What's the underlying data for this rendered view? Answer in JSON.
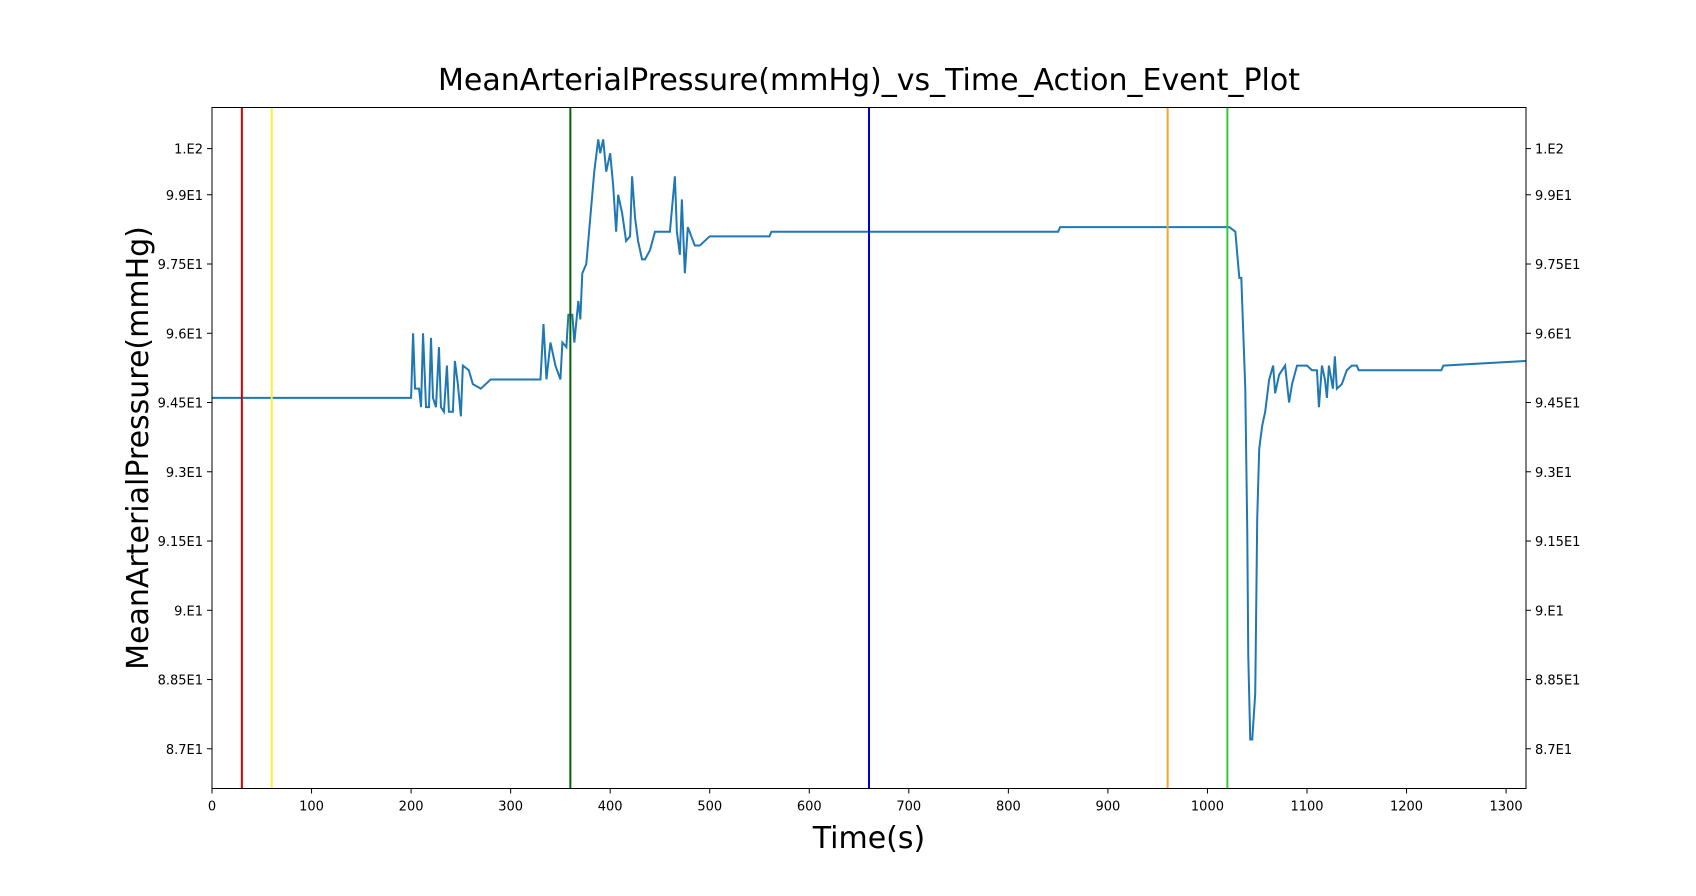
{
  "chart_data": {
    "type": "line",
    "title": "MeanArterialPressure(mmHg)_vs_Time_Action_Event_Plot",
    "x_label": "Time(s)",
    "y_label": "MeanArterialPressure(mmHg)",
    "xlim": [
      0,
      1320
    ],
    "xticks": [
      0,
      100,
      200,
      300,
      400,
      500,
      600,
      700,
      800,
      900,
      1000,
      1100,
      1200,
      1300
    ],
    "ylim": [
      86.14,
      100.89
    ],
    "yticks": [
      {
        "value": 87,
        "label": "8.7E1"
      },
      {
        "value": 88.5,
        "label": "8.85E1"
      },
      {
        "value": 90,
        "label": "9.E1"
      },
      {
        "value": 91.5,
        "label": "9.15E1"
      },
      {
        "value": 93,
        "label": "9.3E1"
      },
      {
        "value": 94.5,
        "label": "9.45E1"
      },
      {
        "value": 96,
        "label": "9.6E1"
      },
      {
        "value": 97.5,
        "label": "9.75E1"
      },
      {
        "value": 99,
        "label": "9.9E1"
      },
      {
        "value": 100,
        "label": "1.E2"
      }
    ],
    "event_lines": [
      {
        "x": 30,
        "color": "#d40000"
      },
      {
        "x": 60,
        "color": "#ffee33"
      },
      {
        "x": 360,
        "color": "#006400"
      },
      {
        "x": 660,
        "color": "#0000dd"
      },
      {
        "x": 960,
        "color": "#f5a623"
      },
      {
        "x": 1020,
        "color": "#33cc33"
      }
    ],
    "series": [
      {
        "color": "#1f77b4",
        "x": [
          0,
          200,
          202,
          204,
          208,
          210,
          212,
          215,
          218,
          220,
          222,
          225,
          228,
          230,
          233,
          236,
          238,
          242,
          244,
          247,
          250,
          252,
          258,
          262,
          270,
          275,
          280,
          330,
          333,
          336,
          340,
          345,
          350,
          352,
          356,
          358,
          362,
          364,
          368,
          370,
          372,
          376,
          380,
          384,
          388,
          390,
          393,
          396,
          400,
          403,
          406,
          408,
          412,
          416,
          420,
          422,
          425,
          428,
          432,
          435,
          440,
          445,
          450,
          460,
          465,
          467,
          470,
          472,
          475,
          478,
          485,
          490,
          495,
          500,
          560,
          562,
          850,
          852,
          1022,
          1028,
          1032,
          1034,
          1038,
          1040,
          1041,
          1043,
          1045,
          1048,
          1050,
          1052,
          1055,
          1058,
          1062,
          1066,
          1068,
          1072,
          1078,
          1082,
          1085,
          1090,
          1100,
          1105,
          1110,
          1112,
          1115,
          1118,
          1120,
          1122,
          1126,
          1128,
          1130,
          1135,
          1140,
          1145,
          1150,
          1152,
          1235,
          1237,
          1320
        ],
        "values": [
          94.6,
          94.6,
          96.0,
          94.8,
          94.8,
          94.4,
          96.0,
          94.4,
          94.4,
          95.9,
          94.6,
          94.4,
          95.7,
          94.4,
          94.3,
          95.3,
          94.3,
          94.3,
          95.4,
          94.9,
          94.2,
          95.3,
          95.2,
          94.9,
          94.8,
          94.9,
          95.0,
          95.0,
          96.2,
          95.0,
          95.8,
          95.3,
          95.0,
          95.8,
          95.7,
          96.4,
          96.4,
          95.8,
          96.7,
          96.3,
          97.3,
          97.5,
          98.5,
          99.5,
          100.2,
          99.9,
          100.2,
          99.5,
          99.9,
          99.2,
          98.2,
          99.0,
          98.6,
          98.0,
          98.1,
          99.4,
          98.5,
          98.0,
          97.6,
          97.6,
          97.8,
          98.2,
          98.2,
          98.2,
          99.4,
          98.2,
          97.7,
          98.9,
          97.3,
          98.3,
          97.9,
          97.9,
          98.0,
          98.1,
          98.1,
          98.2,
          98.2,
          98.3,
          98.3,
          98.2,
          97.2,
          97.2,
          94.8,
          91.7,
          89.0,
          87.2,
          87.2,
          88.2,
          92.0,
          93.5,
          94.0,
          94.3,
          95.0,
          95.3,
          94.7,
          95.1,
          95.3,
          94.5,
          94.9,
          95.3,
          95.3,
          95.2,
          95.2,
          94.4,
          95.3,
          95.0,
          94.6,
          95.3,
          94.8,
          95.5,
          94.8,
          94.9,
          95.2,
          95.3,
          95.3,
          95.2,
          95.2,
          95.3,
          95.4
        ]
      }
    ]
  }
}
